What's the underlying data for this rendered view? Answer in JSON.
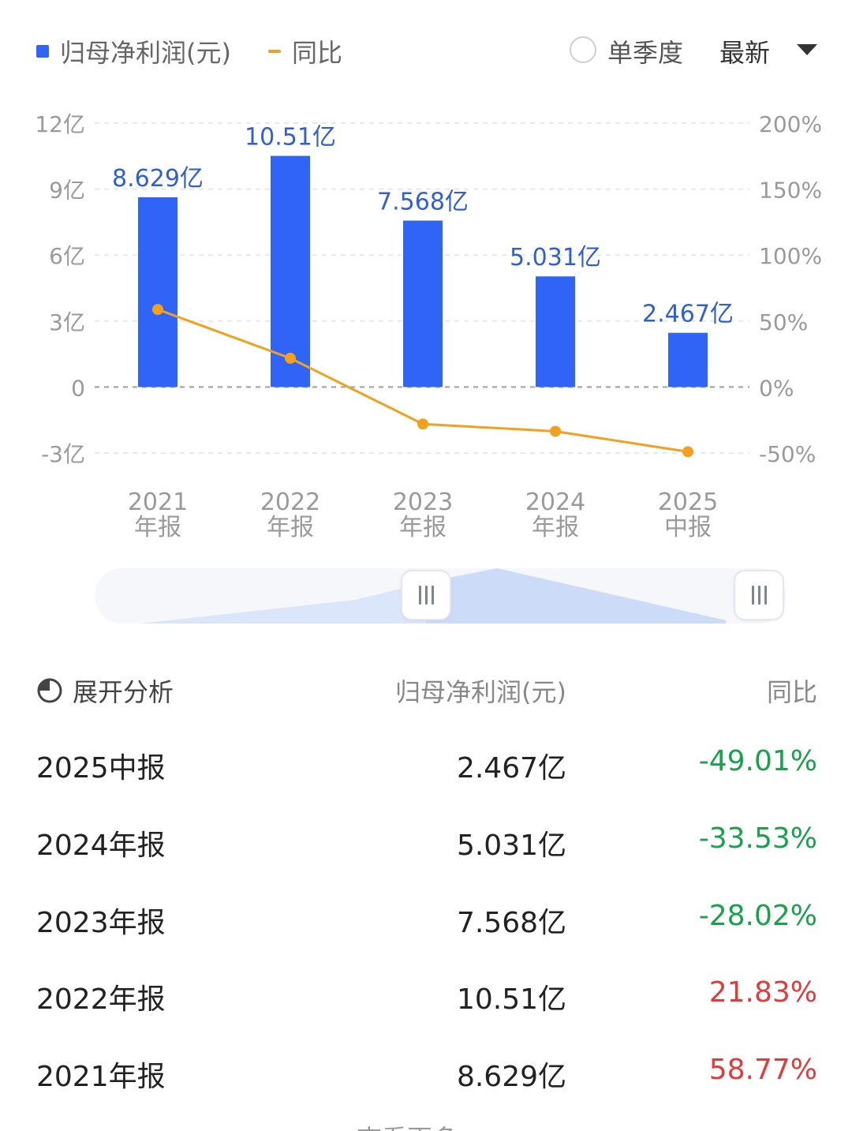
{
  "legend": {
    "series_bar_label": "归母净利润(元)",
    "series_line_label": "同比",
    "single_quarter_label": "单季度",
    "latest_label": "最新"
  },
  "colors": {
    "bar": "#2f64f6",
    "line": "#f3a01e",
    "negative": "#16a34a",
    "positive": "#e23b3b"
  },
  "chart_data": {
    "type": "bar",
    "categories": [
      "2021\n年报",
      "2022\n年报",
      "2023\n年报",
      "2024\n年报",
      "2025\n中报"
    ],
    "series": [
      {
        "name": "归母净利润(元)",
        "type": "bar",
        "axis": "left",
        "values": [
          8.629,
          10.51,
          7.568,
          5.031,
          2.467
        ],
        "labels": [
          "8.629亿",
          "10.51亿",
          "7.568亿",
          "5.031亿",
          "2.467亿"
        ]
      },
      {
        "name": "同比",
        "type": "line",
        "axis": "right",
        "values": [
          58.77,
          21.83,
          -28.02,
          -33.53,
          -49.01
        ]
      }
    ],
    "left_axis": {
      "ticks": [
        "12亿",
        "9亿",
        "6亿",
        "3亿",
        "0",
        "-3亿"
      ],
      "tick_values": [
        12,
        9,
        6,
        3,
        0,
        -3
      ],
      "ylim": [
        -3,
        12
      ]
    },
    "right_axis": {
      "ticks": [
        "200%",
        "150%",
        "100%",
        "50%",
        "0%",
        "-50%"
      ],
      "tick_values": [
        200,
        150,
        100,
        50,
        0,
        -50
      ],
      "ylim": [
        -50,
        200
      ]
    },
    "grid": true
  },
  "table": {
    "expand_label": "展开分析",
    "value_header": "归母净利润(元)",
    "yoy_header": "同比",
    "rows": [
      {
        "period": "2025中报",
        "value": "2.467亿",
        "yoy": "-49.01%",
        "sign": "neg"
      },
      {
        "period": "2024年报",
        "value": "5.031亿",
        "yoy": "-33.53%",
        "sign": "neg"
      },
      {
        "period": "2023年报",
        "value": "7.568亿",
        "yoy": "-28.02%",
        "sign": "neg"
      },
      {
        "period": "2022年报",
        "value": "10.51亿",
        "yoy": "21.83%",
        "sign": "pos"
      },
      {
        "period": "2021年报",
        "value": "8.629亿",
        "yoy": "58.77%",
        "sign": "pos"
      }
    ]
  },
  "bottom_hint": "查看更多"
}
